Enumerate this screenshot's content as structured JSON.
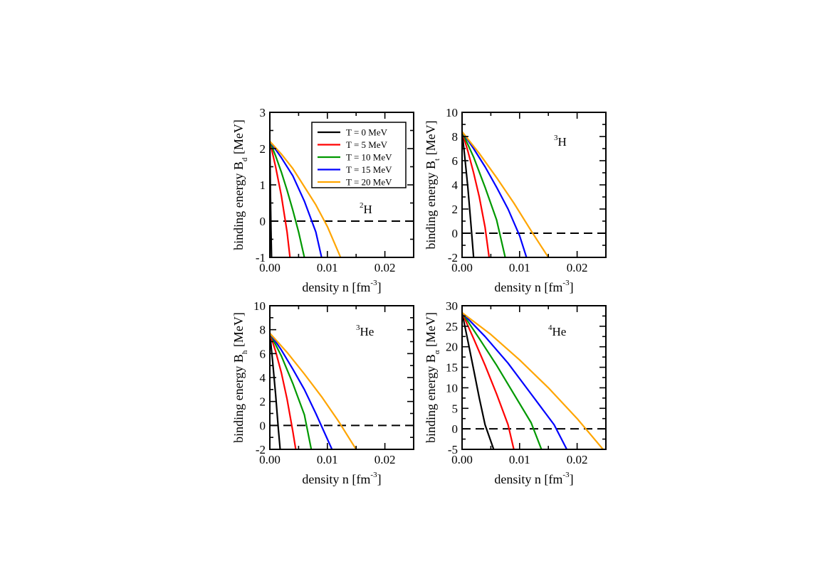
{
  "legend": {
    "placement": "top-right",
    "entries": [
      {
        "label": "T = 0 MeV",
        "color": "#000000"
      },
      {
        "label": "T = 5 MeV",
        "color": "#ff0000"
      },
      {
        "label": "T = 10 MeV",
        "color": "#009900"
      },
      {
        "label": "T = 15 MeV",
        "color": "#0000ff"
      },
      {
        "label": "T = 20 MeV",
        "color": "#ffa500"
      }
    ]
  },
  "chart_data": [
    {
      "type": "line",
      "panel": "top-left",
      "nuclide": {
        "mass": "2",
        "symbol": "H"
      },
      "ylabel": {
        "text": "binding energy   B",
        "sub": "d",
        "unit": "[MeV]"
      },
      "xlabel": {
        "text": "density  n   [fm",
        "sup": "-3",
        "close": "]"
      },
      "xlim": [
        0,
        0.025
      ],
      "ylim": [
        -1,
        3
      ],
      "xticks": [
        0,
        0.01,
        0.02
      ],
      "xtick_labels": [
        "0.00",
        "0.01",
        "0.02"
      ],
      "yticks": [
        -1,
        0,
        1,
        2,
        3
      ],
      "ytick_labels": [
        "-1",
        "0",
        "1",
        "2",
        "3"
      ],
      "zero_line": 0,
      "show_legend": true,
      "series": [
        {
          "name": "T = 0 MeV",
          "x": [
            0,
            0.0001,
            0.0002,
            0.0003
          ],
          "y": [
            2.2,
            0.8,
            -0.2,
            -1
          ]
        },
        {
          "name": "T = 5 MeV",
          "x": [
            0,
            0.001,
            0.002,
            0.003,
            0.0035
          ],
          "y": [
            2.2,
            1.5,
            0.7,
            -0.3,
            -1
          ]
        },
        {
          "name": "T = 10 MeV",
          "x": [
            0,
            0.001,
            0.002,
            0.003,
            0.004,
            0.005,
            0.006
          ],
          "y": [
            2.2,
            1.8,
            1.35,
            0.85,
            0.3,
            -0.3,
            -1
          ]
        },
        {
          "name": "T = 15 MeV",
          "x": [
            0,
            0.002,
            0.004,
            0.006,
            0.008,
            0.009
          ],
          "y": [
            2.2,
            1.75,
            1.25,
            0.55,
            -0.3,
            -1
          ]
        },
        {
          "name": "T = 20 MeV",
          "x": [
            0,
            0.002,
            0.004,
            0.006,
            0.008,
            0.01,
            0.0123
          ],
          "y": [
            2.2,
            1.85,
            1.45,
            0.95,
            0.45,
            -0.15,
            -1
          ]
        }
      ]
    },
    {
      "type": "line",
      "panel": "top-right",
      "nuclide": {
        "mass": "3",
        "symbol": "H"
      },
      "ylabel": {
        "text": "binding energy   B",
        "sub": "t",
        "unit": "[MeV]"
      },
      "xlabel": {
        "text": "density  n   [fm",
        "sup": "-3",
        "close": "]"
      },
      "xlim": [
        0,
        0.025
      ],
      "ylim": [
        -2,
        10
      ],
      "xticks": [
        0,
        0.01,
        0.02
      ],
      "xtick_labels": [
        "0.00",
        "0.01",
        "0.02"
      ],
      "yticks": [
        -2,
        0,
        2,
        4,
        6,
        8,
        10
      ],
      "ytick_labels": [
        "-2",
        "0",
        "2",
        "4",
        "6",
        "8",
        "10"
      ],
      "zero_line": 0,
      "show_legend": false,
      "series": [
        {
          "name": "T = 0 MeV",
          "x": [
            0,
            0.0005,
            0.001,
            0.0015,
            0.002
          ],
          "y": [
            8.4,
            6.2,
            3.8,
            1,
            -2
          ]
        },
        {
          "name": "T = 5 MeV",
          "x": [
            0,
            0.001,
            0.002,
            0.003,
            0.004,
            0.0047
          ],
          "y": [
            8.4,
            6.8,
            5,
            3,
            0.5,
            -2
          ]
        },
        {
          "name": "T = 10 MeV",
          "x": [
            0,
            0.002,
            0.004,
            0.006,
            0.0075
          ],
          "y": [
            8.4,
            6.3,
            3.8,
            1.1,
            -2
          ]
        },
        {
          "name": "T = 15 MeV",
          "x": [
            0,
            0.002,
            0.004,
            0.006,
            0.008,
            0.01,
            0.0112
          ],
          "y": [
            8.4,
            7,
            5.5,
            3.8,
            2,
            -0.2,
            -2
          ]
        },
        {
          "name": "T = 20 MeV",
          "x": [
            0,
            0.003,
            0.006,
            0.009,
            0.012,
            0.015
          ],
          "y": [
            8.4,
            6.6,
            4.6,
            2.5,
            0.2,
            -2
          ]
        }
      ]
    },
    {
      "type": "line",
      "panel": "bottom-left",
      "nuclide": {
        "mass": "3",
        "symbol": "He"
      },
      "ylabel": {
        "text": "binding energy   B",
        "sub": "h",
        "unit": "[MeV]"
      },
      "xlabel": {
        "text": "density  n   [fm",
        "sup": "-3",
        "close": "]"
      },
      "xlim": [
        0,
        0.025
      ],
      "ylim": [
        -2,
        10
      ],
      "xticks": [
        0,
        0.01,
        0.02
      ],
      "xtick_labels": [
        "0.00",
        "0.01",
        "0.02"
      ],
      "yticks": [
        -2,
        0,
        2,
        4,
        6,
        8,
        10
      ],
      "ytick_labels": [
        "-2",
        "0",
        "2",
        "4",
        "6",
        "8",
        "10"
      ],
      "zero_line": 0,
      "show_legend": false,
      "series": [
        {
          "name": "T = 0 MeV",
          "x": [
            0,
            0.0005,
            0.001,
            0.0015,
            0.0018
          ],
          "y": [
            7.7,
            5.3,
            2.6,
            -0.4,
            -2
          ]
        },
        {
          "name": "T = 5 MeV",
          "x": [
            0,
            0.001,
            0.002,
            0.003,
            0.004,
            0.0045
          ],
          "y": [
            7.7,
            6.2,
            4.4,
            2.2,
            -0.5,
            -2
          ]
        },
        {
          "name": "T = 10 MeV",
          "x": [
            0,
            0.002,
            0.004,
            0.006,
            0.0072
          ],
          "y": [
            7.7,
            5.8,
            3.5,
            0.9,
            -2
          ]
        },
        {
          "name": "T = 15 MeV",
          "x": [
            0,
            0.002,
            0.004,
            0.006,
            0.008,
            0.0108
          ],
          "y": [
            7.7,
            6.3,
            4.7,
            3,
            1,
            -2
          ]
        },
        {
          "name": "T = 20 MeV",
          "x": [
            0,
            0.003,
            0.006,
            0.009,
            0.012,
            0.015
          ],
          "y": [
            7.7,
            6.1,
            4.3,
            2.4,
            0.3,
            -2
          ]
        }
      ]
    },
    {
      "type": "line",
      "panel": "bottom-right",
      "nuclide": {
        "mass": "4",
        "symbol": "He"
      },
      "ylabel": {
        "text": "binding energy   B",
        "sub": "α",
        "unit": "[MeV]"
      },
      "xlabel": {
        "text": "density  n   [fm",
        "sup": "-3",
        "close": "]"
      },
      "xlim": [
        0,
        0.025
      ],
      "ylim": [
        -5,
        30
      ],
      "xticks": [
        0,
        0.01,
        0.02
      ],
      "xtick_labels": [
        "0.00",
        "0.01",
        "0.02"
      ],
      "yticks": [
        -5,
        0,
        5,
        10,
        15,
        20,
        25,
        30
      ],
      "ytick_labels": [
        "-5",
        "0",
        "5",
        "10",
        "15",
        "20",
        "25",
        "30"
      ],
      "zero_line": 0,
      "show_legend": false,
      "series": [
        {
          "name": "T = 0 MeV",
          "x": [
            0,
            0.001,
            0.002,
            0.003,
            0.004,
            0.0055
          ],
          "y": [
            28.3,
            21.5,
            14.5,
            7.5,
            1,
            -5
          ]
        },
        {
          "name": "T = 5 MeV",
          "x": [
            0,
            0.002,
            0.004,
            0.006,
            0.008,
            0.009
          ],
          "y": [
            28.3,
            22,
            15.5,
            8.5,
            1,
            -5
          ]
        },
        {
          "name": "T = 10 MeV",
          "x": [
            0,
            0.003,
            0.006,
            0.009,
            0.012,
            0.0138
          ],
          "y": [
            28.3,
            22,
            15.5,
            8.5,
            1.5,
            -5
          ]
        },
        {
          "name": "T = 15 MeV",
          "x": [
            0,
            0.004,
            0.008,
            0.012,
            0.016,
            0.0182
          ],
          "y": [
            28.3,
            22.5,
            16,
            8.5,
            1,
            -5
          ]
        },
        {
          "name": "T = 20 MeV",
          "x": [
            0,
            0.005,
            0.01,
            0.015,
            0.02,
            0.0245
          ],
          "y": [
            28.3,
            23,
            16.8,
            10,
            2.5,
            -5
          ]
        }
      ]
    }
  ]
}
